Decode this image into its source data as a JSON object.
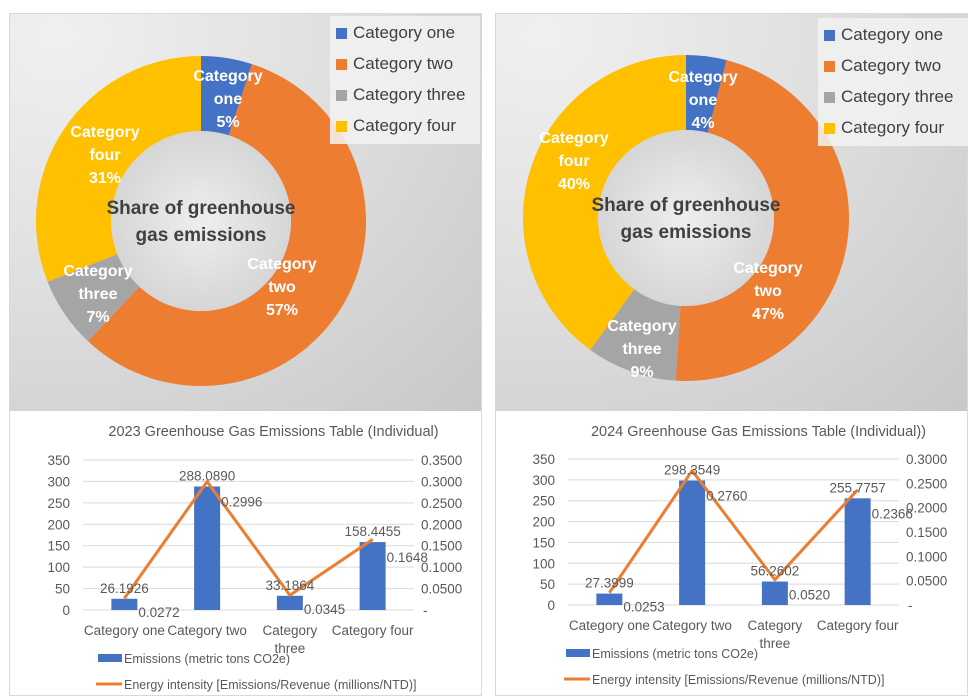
{
  "colors": {
    "category_one": "#4472c4",
    "category_two": "#ed7d31",
    "category_three": "#a5a5a5",
    "category_four": "#ffc000",
    "bar": "#4472c4",
    "line": "#ed7d31",
    "text": "#595959",
    "center_text": "#404040",
    "grid": "#d9d9d9"
  },
  "chart_data": [
    {
      "type": "pie",
      "variant": "donut",
      "title": "Share of greenhouse gas emissions",
      "title_lines": [
        "Share of greenhouse",
        "gas emissions"
      ],
      "categories": [
        "Category one",
        "Category two",
        "Category three",
        "Category four"
      ],
      "values": [
        5,
        57,
        7,
        31
      ],
      "unit": "%",
      "labels": [
        [
          "Category",
          "one",
          "5%"
        ],
        [
          "Category",
          "two",
          "57%"
        ],
        [
          "Category",
          "three",
          "7%"
        ],
        [
          "Category",
          "four",
          "31%"
        ]
      ],
      "legend": [
        "Category one",
        "Category two",
        "Category three",
        "Category four"
      ],
      "legend_position": "top-right"
    },
    {
      "type": "pie",
      "variant": "donut",
      "title": "Share of greenhouse gas emissions",
      "title_lines": [
        "Share of greenhouse",
        "gas emissions"
      ],
      "categories": [
        "Category one",
        "Category two",
        "Category three",
        "Category four"
      ],
      "values": [
        4,
        47,
        9,
        40
      ],
      "unit": "%",
      "labels": [
        [
          "Category",
          "one",
          "4%"
        ],
        [
          "Category",
          "two",
          "47%"
        ],
        [
          "Category",
          "three",
          "9%"
        ],
        [
          "Category",
          "four",
          "40%"
        ]
      ],
      "legend": [
        "Category one",
        "Category two",
        "Category three",
        "Category four"
      ],
      "legend_position": "top-right"
    },
    {
      "type": "bar",
      "combo": "bar+line",
      "title": "2023 Greenhouse Gas Emissions Table (Individual)",
      "categories": [
        "Category one",
        "Category two",
        "Category three",
        "Category four"
      ],
      "category_label_lines": [
        [
          "Category one"
        ],
        [
          "Category two"
        ],
        [
          "Category",
          "three"
        ],
        [
          "Category four"
        ]
      ],
      "series": [
        {
          "name": "Emissions (metric tons CO2e)",
          "type": "bar",
          "axis": "left",
          "values": [
            26.1926,
            288.089,
            33.1864,
            158.4455
          ],
          "labels": [
            "26.1926",
            "288.0890",
            "33.1864",
            "158.4455"
          ]
        },
        {
          "name": "Energy intensity [Emissions/Revenue (millions/NTD)]",
          "type": "line",
          "axis": "right",
          "values": [
            0.0272,
            0.2996,
            0.0345,
            0.1648
          ],
          "labels": [
            "0.0272",
            "0.2996",
            "0.0345",
            "0.1648"
          ]
        }
      ],
      "ylim": [
        0,
        350
      ],
      "yticks": [
        "0",
        "50",
        "100",
        "150",
        "200",
        "250",
        "300",
        "350"
      ],
      "y2lim": [
        0,
        0.35
      ],
      "y2ticks": [
        "-",
        "0.0500",
        "0.1000",
        "0.1500",
        "0.2000",
        "0.2500",
        "0.3000",
        "0.3500"
      ],
      "grid": true,
      "legend_position": "bottom"
    },
    {
      "type": "bar",
      "combo": "bar+line",
      "title": "2024 Greenhouse Gas Emissions Table (Individual))",
      "categories": [
        "Category one",
        "Category two",
        "Category three",
        "Category four"
      ],
      "category_label_lines": [
        [
          "Category one"
        ],
        [
          "Category two"
        ],
        [
          "Category",
          "three"
        ],
        [
          "Category four"
        ]
      ],
      "series": [
        {
          "name": "Emissions (metric tons CO2e)",
          "type": "bar",
          "axis": "left",
          "values": [
            27.3999,
            298.3549,
            56.2602,
            255.7757
          ],
          "labels": [
            "27.3999",
            "298.3549",
            "56.2602",
            "255.7757"
          ]
        },
        {
          "name": "Energy intensity [Emissions/Revenue (millions/NTD)]",
          "type": "line",
          "axis": "right",
          "values": [
            0.0253,
            0.276,
            0.052,
            0.2366
          ],
          "labels": [
            "0.0253",
            "0.2760",
            "0.0520",
            "0.2366"
          ]
        }
      ],
      "ylim": [
        0,
        350
      ],
      "yticks": [
        "0",
        "50",
        "100",
        "150",
        "200",
        "250",
        "300",
        "350"
      ],
      "y2lim": [
        0,
        0.3
      ],
      "y2ticks": [
        "-",
        "0.0500",
        "0.1000",
        "0.1500",
        "0.2000",
        "0.2500",
        "0.3000"
      ],
      "grid": true,
      "legend_position": "bottom"
    }
  ]
}
